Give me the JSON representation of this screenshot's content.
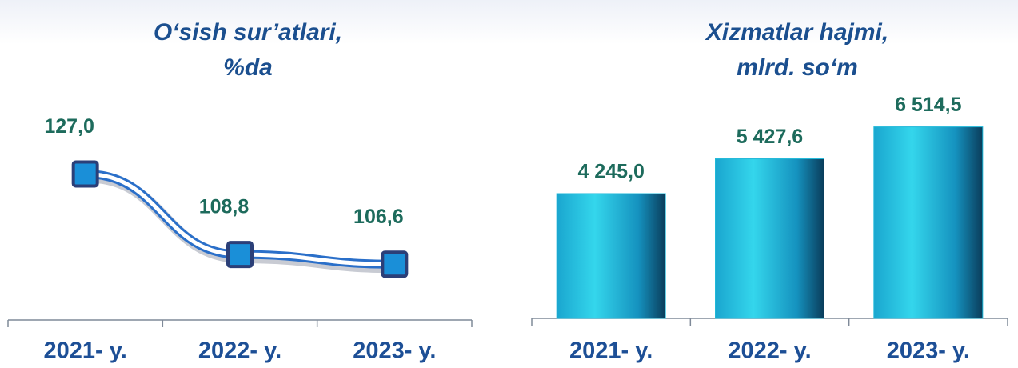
{
  "chart_data": [
    {
      "type": "line",
      "title": [
        "O‘sish sur’atlari,",
        "%da"
      ],
      "categories": [
        "2021- y.",
        "2022- y.",
        "2023- y."
      ],
      "values": [
        127.0,
        108.8,
        106.6
      ],
      "value_labels": [
        "127,0",
        "108,8",
        "106,6"
      ],
      "color": "#2a6fc9",
      "ylim": [
        94,
        141
      ]
    },
    {
      "type": "bar",
      "title": [
        "Xizmatlar hajmi,",
        "mlrd. so‘m"
      ],
      "categories": [
        "2021- y.",
        "2022- y.",
        "2023- y."
      ],
      "values": [
        4245.0,
        5427.6,
        6514.5
      ],
      "value_labels": [
        "4 245,0",
        "5 427,6",
        "6 514,5"
      ],
      "color": "#1fb8d8",
      "ylim": [
        0,
        8000
      ]
    }
  ]
}
